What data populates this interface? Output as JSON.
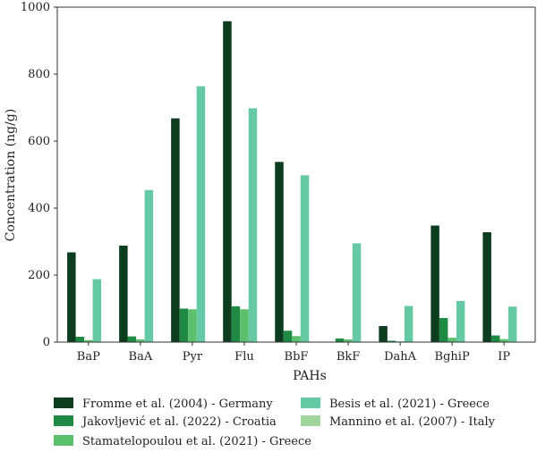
{
  "chart_data": {
    "type": "bar",
    "title": "",
    "xlabel": "PAHs",
    "ylabel": "Concentration (ng/g)",
    "ylim": [
      0,
      1000
    ],
    "yticks": [
      0,
      200,
      400,
      600,
      800,
      1000
    ],
    "grid": false,
    "legend_position": "bottom",
    "categories": [
      "BaP",
      "BaA",
      "Pyr",
      "Flu",
      "BbF",
      "BkF",
      "DahA",
      "BghiP",
      "IP"
    ],
    "series": [
      {
        "name": "Fromme et al. (2004) - Germany",
        "color": "#0c3d1f",
        "values": [
          268,
          288,
          668,
          958,
          538,
          0,
          48,
          348,
          328
        ]
      },
      {
        "name": "Jakovljević et al. (2022) - Croatia",
        "color": "#1e8a44",
        "values": [
          16,
          17,
          100,
          107,
          34,
          11,
          4,
          72,
          20
        ]
      },
      {
        "name": "Stamatelopoulou et al. (2021) - Greece",
        "color": "#5cbf6c",
        "values": [
          6,
          8,
          98,
          98,
          18,
          8,
          2,
          13,
          9
        ]
      },
      {
        "name": "Besis et al. (2021) - Greece",
        "color": "#66c9a6",
        "values": [
          188,
          454,
          764,
          698,
          498,
          295,
          108,
          123,
          106
        ]
      },
      {
        "name": "Mannino et al. (2007) - Italy",
        "color": "#9fd69c",
        "values": [
          0,
          0,
          0,
          0,
          0,
          0,
          0,
          0,
          0
        ]
      }
    ]
  }
}
